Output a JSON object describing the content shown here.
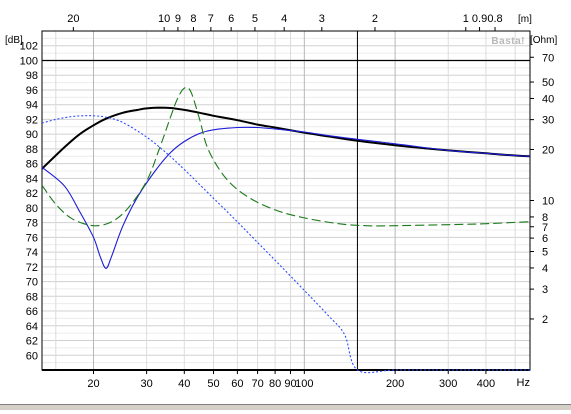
{
  "chart_data": {
    "type": "line",
    "title": "",
    "watermark": "Basta!",
    "x_axis": {
      "label": "Hz",
      "scale": "log",
      "range": [
        13.5,
        560
      ],
      "tick_labels": [
        "20",
        "30",
        "40",
        "50",
        "60",
        "70",
        "80",
        "90",
        "100",
        "200",
        "300",
        "400"
      ]
    },
    "top_axis": {
      "unit": "[m]",
      "scale": "wavelength",
      "tick_labels": [
        "20",
        "10",
        "9",
        "8",
        "7",
        "6",
        "5",
        "4",
        "3",
        "2",
        "1",
        "0.9",
        "0.8"
      ],
      "tick_positions_hz": [
        17.15,
        34.3,
        38.1,
        42.9,
        49.0,
        57.2,
        68.6,
        85.75,
        114.3,
        171.5,
        343,
        381,
        428.8
      ]
    },
    "y_left_axis": {
      "unit": "[dB]",
      "range": [
        58,
        104
      ],
      "tick_labels": [
        "60",
        "62",
        "64",
        "66",
        "68",
        "70",
        "72",
        "74",
        "76",
        "78",
        "80",
        "82",
        "84",
        "86",
        "88",
        "90",
        "92",
        "94",
        "96",
        "98",
        "100",
        "102"
      ]
    },
    "y_right_axis": {
      "unit": "[Ohm]",
      "scale": "log",
      "range": [
        1.0,
        100
      ],
      "tick_labels": [
        "2",
        "3",
        "4",
        "5",
        "6",
        "7",
        "8",
        "10",
        "20",
        "30",
        "40",
        "50",
        "70"
      ]
    },
    "marker_x_hz": 150,
    "grid": true,
    "series": [
      {
        "axis": "left",
        "color": "#000000",
        "dash": "solid",
        "x": [
          13.5,
          16,
          18,
          20,
          22,
          25,
          28,
          30,
          33,
          36,
          40,
          45,
          50,
          60,
          70,
          80,
          100,
          120,
          150,
          200,
          250,
          300,
          400,
          500,
          560
        ],
        "y": [
          85.3,
          88.2,
          90.0,
          91.2,
          92.1,
          92.9,
          93.3,
          93.5,
          93.6,
          93.55,
          93.3,
          92.9,
          92.5,
          91.9,
          91.3,
          90.9,
          90.2,
          89.7,
          89.1,
          88.5,
          88.1,
          87.8,
          87.4,
          87.1,
          87.0
        ]
      },
      {
        "axis": "left",
        "color": "#1c1cd6",
        "dash": "solid",
        "x": [
          13.5,
          16,
          18,
          20,
          21,
          22,
          23,
          25,
          28,
          32,
          36,
          40,
          45,
          50,
          60,
          70,
          80,
          100,
          120,
          150,
          200,
          300,
          400,
          500,
          560
        ],
        "y": [
          85.5,
          83.0,
          79.5,
          76.0,
          73.5,
          71.8,
          73.5,
          77.5,
          81.5,
          85.0,
          87.5,
          89.0,
          90.1,
          90.6,
          90.9,
          90.9,
          90.7,
          90.3,
          89.8,
          89.3,
          88.7,
          87.8,
          87.4,
          87.1,
          87.0
        ]
      },
      {
        "axis": "left",
        "color": "#2a4cff",
        "dash": "dotted",
        "x": [
          13.5,
          15,
          17,
          18.5,
          20,
          22,
          25,
          30,
          35,
          40,
          50,
          60,
          70,
          80,
          100,
          120,
          136,
          150,
          200,
          300,
          400,
          560
        ],
        "y": [
          91.5,
          92.0,
          92.4,
          92.5,
          92.5,
          92.3,
          91.6,
          89.6,
          87.4,
          85.2,
          81.3,
          78.1,
          75.3,
          72.9,
          68.8,
          65.4,
          62.8,
          58.0,
          58.0,
          58.0,
          58.0,
          58.0
        ]
      },
      {
        "axis": "right",
        "color": "#1a7a1a",
        "dash": "dashed",
        "x": [
          13.5,
          15,
          17,
          20,
          23,
          26,
          30,
          33,
          36,
          38,
          40,
          42,
          45,
          48,
          55,
          65,
          80,
          100,
          130,
          160,
          200,
          300,
          400,
          560
        ],
        "y": [
          12.3,
          9.5,
          7.8,
          7.1,
          7.5,
          9.0,
          13.0,
          20.0,
          31.0,
          40.0,
          46.0,
          44.0,
          30.0,
          20.0,
          13.5,
          10.5,
          8.8,
          7.9,
          7.3,
          7.1,
          7.1,
          7.2,
          7.3,
          7.5
        ]
      }
    ]
  }
}
